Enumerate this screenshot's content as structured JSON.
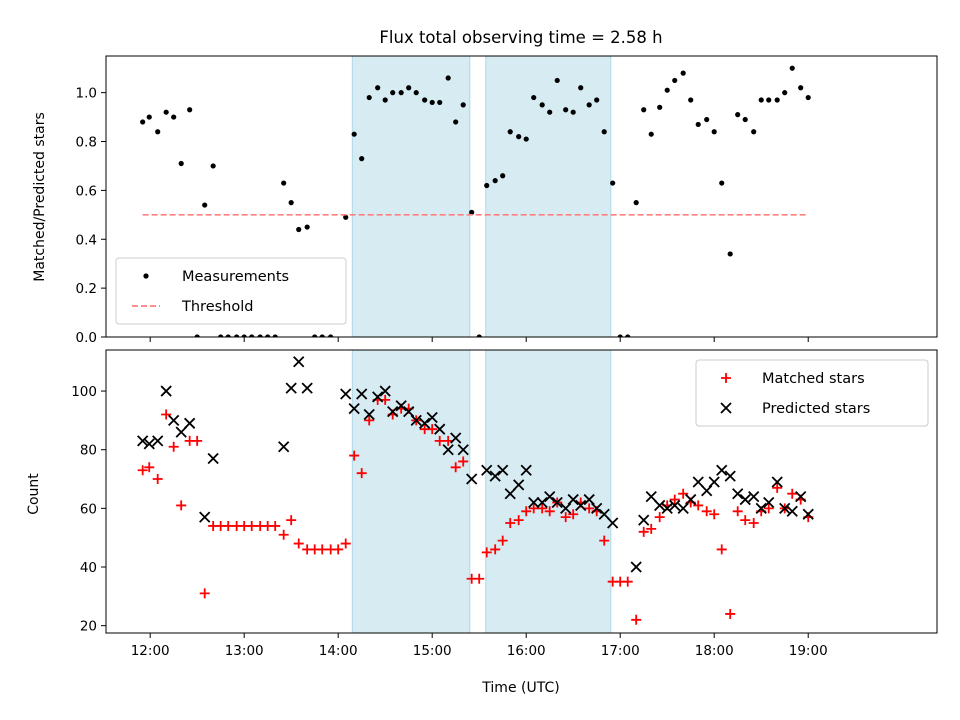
{
  "chart_data": [
    {
      "type": "scatter",
      "title": "Flux total observing time = 2.58 h",
      "xlabel": "",
      "ylabel": "Matched/Predicted stars",
      "xlim": [
        11.53,
        20.37
      ],
      "ylim": [
        0,
        1.15
      ],
      "xticks": [
        {
          "v": 12,
          "label": ""
        },
        {
          "v": 13,
          "label": ""
        },
        {
          "v": 14,
          "label": ""
        },
        {
          "v": 15,
          "label": ""
        },
        {
          "v": 16,
          "label": ""
        },
        {
          "v": 17,
          "label": ""
        },
        {
          "v": 18,
          "label": ""
        },
        {
          "v": 19,
          "label": ""
        }
      ],
      "yticks": [
        {
          "v": 0,
          "label": "0.0"
        },
        {
          "v": 0.2,
          "label": "0.2"
        },
        {
          "v": 0.4,
          "label": "0.4"
        },
        {
          "v": 0.6,
          "label": "0.6"
        },
        {
          "v": 0.8,
          "label": "0.8"
        },
        {
          "v": 1.0,
          "label": "1.0"
        }
      ],
      "shaded_intervals": [
        [
          14.15,
          15.4
        ],
        [
          15.57,
          16.9
        ]
      ],
      "legend": {
        "position": "lower-left",
        "entries": [
          "Measurements",
          "Threshold"
        ]
      },
      "series": [
        {
          "name": "Measurements",
          "marker": "dot",
          "color": "#000000",
          "points": [
            [
              11.92,
              0.88
            ],
            [
              11.99,
              0.9
            ],
            [
              12.08,
              0.84
            ],
            [
              12.17,
              0.92
            ],
            [
              12.25,
              0.9
            ],
            [
              12.33,
              0.71
            ],
            [
              12.42,
              0.93
            ],
            [
              12.5,
              0.0
            ],
            [
              12.58,
              0.54
            ],
            [
              12.67,
              0.7
            ],
            [
              12.75,
              0.0
            ],
            [
              12.83,
              0.0
            ],
            [
              12.92,
              0.0
            ],
            [
              13.0,
              0.0
            ],
            [
              13.08,
              0.0
            ],
            [
              13.17,
              0.0
            ],
            [
              13.25,
              0.0
            ],
            [
              13.33,
              0.0
            ],
            [
              13.42,
              0.63
            ],
            [
              13.5,
              0.55
            ],
            [
              13.58,
              0.44
            ],
            [
              13.67,
              0.45
            ],
            [
              13.75,
              0.0
            ],
            [
              13.83,
              0.0
            ],
            [
              13.92,
              0.0
            ],
            [
              14.08,
              0.49
            ],
            [
              14.17,
              0.83
            ],
            [
              14.25,
              0.73
            ],
            [
              14.33,
              0.98
            ],
            [
              14.42,
              1.02
            ],
            [
              14.5,
              0.97
            ],
            [
              14.58,
              1.0
            ],
            [
              14.67,
              1.0
            ],
            [
              14.75,
              1.02
            ],
            [
              14.83,
              1.0
            ],
            [
              14.92,
              0.97
            ],
            [
              15.0,
              0.96
            ],
            [
              15.08,
              0.96
            ],
            [
              15.17,
              1.06
            ],
            [
              15.25,
              0.88
            ],
            [
              15.33,
              0.95
            ],
            [
              15.42,
              0.51
            ],
            [
              15.5,
              0.0
            ],
            [
              15.58,
              0.62
            ],
            [
              15.67,
              0.64
            ],
            [
              15.75,
              0.66
            ],
            [
              15.83,
              0.84
            ],
            [
              15.92,
              0.82
            ],
            [
              16.0,
              0.81
            ],
            [
              16.08,
              0.98
            ],
            [
              16.17,
              0.95
            ],
            [
              16.25,
              0.92
            ],
            [
              16.33,
              1.05
            ],
            [
              16.42,
              0.93
            ],
            [
              16.5,
              0.92
            ],
            [
              16.58,
              1.02
            ],
            [
              16.67,
              0.95
            ],
            [
              16.75,
              0.97
            ],
            [
              16.83,
              0.84
            ],
            [
              16.92,
              0.63
            ],
            [
              17.0,
              0.0
            ],
            [
              17.08,
              0.0
            ],
            [
              17.17,
              0.55
            ],
            [
              17.25,
              0.93
            ],
            [
              17.33,
              0.83
            ],
            [
              17.42,
              0.94
            ],
            [
              17.5,
              1.01
            ],
            [
              17.58,
              1.05
            ],
            [
              17.67,
              1.08
            ],
            [
              17.75,
              0.97
            ],
            [
              17.83,
              0.87
            ],
            [
              17.92,
              0.89
            ],
            [
              18.0,
              0.84
            ],
            [
              18.08,
              0.63
            ],
            [
              18.17,
              0.34
            ],
            [
              18.25,
              0.91
            ],
            [
              18.33,
              0.89
            ],
            [
              18.42,
              0.84
            ],
            [
              18.5,
              0.97
            ],
            [
              18.58,
              0.97
            ],
            [
              18.67,
              0.97
            ],
            [
              18.75,
              1.0
            ],
            [
              18.83,
              1.1
            ],
            [
              18.92,
              1.02
            ],
            [
              19.0,
              0.98
            ]
          ]
        },
        {
          "name": "Threshold",
          "marker": "dashed-line",
          "color": "#ff7f7f",
          "points": [
            [
              11.92,
              0.5
            ],
            [
              19.0,
              0.5
            ]
          ]
        }
      ]
    },
    {
      "type": "scatter",
      "title": "",
      "xlabel": "Time (UTC)",
      "ylabel": "Count",
      "xlim": [
        11.53,
        20.37
      ],
      "ylim": [
        17.5,
        114
      ],
      "xticks": [
        {
          "v": 12,
          "label": "12:00"
        },
        {
          "v": 13,
          "label": "13:00"
        },
        {
          "v": 14,
          "label": "14:00"
        },
        {
          "v": 15,
          "label": "15:00"
        },
        {
          "v": 16,
          "label": "16:00"
        },
        {
          "v": 17,
          "label": "17:00"
        },
        {
          "v": 18,
          "label": "18:00"
        },
        {
          "v": 19,
          "label": "19:00"
        }
      ],
      "yticks": [
        {
          "v": 20,
          "label": "20"
        },
        {
          "v": 40,
          "label": "40"
        },
        {
          "v": 60,
          "label": "60"
        },
        {
          "v": 80,
          "label": "80"
        },
        {
          "v": 100,
          "label": "100"
        }
      ],
      "shaded_intervals": [
        [
          14.15,
          15.4
        ],
        [
          15.57,
          16.9
        ]
      ],
      "legend": {
        "position": "top-right",
        "entries": [
          "Matched stars",
          "Predicted stars"
        ]
      },
      "series": [
        {
          "name": "Matched stars",
          "marker": "plus",
          "color": "#ff0000",
          "points": [
            [
              11.92,
              73
            ],
            [
              11.99,
              74
            ],
            [
              12.08,
              70
            ],
            [
              12.17,
              92
            ],
            [
              12.25,
              81
            ],
            [
              12.33,
              61
            ],
            [
              12.42,
              83
            ],
            [
              12.5,
              83
            ],
            [
              12.58,
              31
            ],
            [
              12.67,
              54
            ],
            [
              12.75,
              54
            ],
            [
              12.83,
              54
            ],
            [
              12.92,
              54
            ],
            [
              13.0,
              54
            ],
            [
              13.08,
              54
            ],
            [
              13.17,
              54
            ],
            [
              13.25,
              54
            ],
            [
              13.33,
              54
            ],
            [
              13.42,
              51
            ],
            [
              13.5,
              56
            ],
            [
              13.58,
              48
            ],
            [
              13.67,
              46
            ],
            [
              13.75,
              46
            ],
            [
              13.83,
              46
            ],
            [
              13.92,
              46
            ],
            [
              14.0,
              46
            ],
            [
              14.08,
              48
            ],
            [
              14.17,
              78
            ],
            [
              14.25,
              72
            ],
            [
              14.33,
              90
            ],
            [
              14.42,
              97
            ],
            [
              14.5,
              97
            ],
            [
              14.58,
              92
            ],
            [
              14.67,
              94
            ],
            [
              14.75,
              94
            ],
            [
              14.83,
              90
            ],
            [
              14.92,
              87
            ],
            [
              15.0,
              87
            ],
            [
              15.08,
              83
            ],
            [
              15.17,
              83
            ],
            [
              15.25,
              74
            ],
            [
              15.33,
              76
            ],
            [
              15.42,
              36
            ],
            [
              15.5,
              36
            ],
            [
              15.58,
              45
            ],
            [
              15.67,
              46
            ],
            [
              15.75,
              49
            ],
            [
              15.83,
              55
            ],
            [
              15.92,
              56
            ],
            [
              16.0,
              59
            ],
            [
              16.08,
              60
            ],
            [
              16.17,
              60
            ],
            [
              16.25,
              59
            ],
            [
              16.33,
              62
            ],
            [
              16.42,
              57
            ],
            [
              16.5,
              58
            ],
            [
              16.58,
              62
            ],
            [
              16.67,
              60
            ],
            [
              16.75,
              59
            ],
            [
              16.83,
              49
            ],
            [
              16.92,
              35
            ],
            [
              17.0,
              35
            ],
            [
              17.08,
              35
            ],
            [
              17.17,
              22
            ],
            [
              17.25,
              52
            ],
            [
              17.33,
              53
            ],
            [
              17.42,
              57
            ],
            [
              17.5,
              61
            ],
            [
              17.58,
              63
            ],
            [
              17.67,
              65
            ],
            [
              17.75,
              62
            ],
            [
              17.83,
              61
            ],
            [
              17.92,
              59
            ],
            [
              18.0,
              58
            ],
            [
              18.08,
              46
            ],
            [
              18.17,
              24
            ],
            [
              18.25,
              59
            ],
            [
              18.33,
              56
            ],
            [
              18.42,
              55
            ],
            [
              18.5,
              59
            ],
            [
              18.58,
              60
            ],
            [
              18.67,
              67
            ],
            [
              18.75,
              60
            ],
            [
              18.83,
              65
            ],
            [
              18.92,
              63
            ],
            [
              19.0,
              57
            ]
          ]
        },
        {
          "name": "Predicted stars",
          "marker": "x",
          "color": "#000000",
          "points": [
            [
              11.92,
              83
            ],
            [
              11.99,
              82
            ],
            [
              12.08,
              83
            ],
            [
              12.17,
              100
            ],
            [
              12.25,
              90
            ],
            [
              12.33,
              86
            ],
            [
              12.42,
              89
            ],
            [
              12.58,
              57
            ],
            [
              12.67,
              77
            ],
            [
              13.42,
              81
            ],
            [
              13.5,
              101
            ],
            [
              13.58,
              110
            ],
            [
              13.67,
              101
            ],
            [
              14.08,
              99
            ],
            [
              14.17,
              94
            ],
            [
              14.25,
              99
            ],
            [
              14.33,
              92
            ],
            [
              14.42,
              98
            ],
            [
              14.5,
              100
            ],
            [
              14.58,
              93
            ],
            [
              14.67,
              95
            ],
            [
              14.75,
              93
            ],
            [
              14.83,
              90
            ],
            [
              14.92,
              89
            ],
            [
              15.0,
              91
            ],
            [
              15.08,
              87
            ],
            [
              15.17,
              80
            ],
            [
              15.25,
              84
            ],
            [
              15.33,
              80
            ],
            [
              15.42,
              70
            ],
            [
              15.58,
              73
            ],
            [
              15.67,
              71
            ],
            [
              15.75,
              73
            ],
            [
              15.83,
              65
            ],
            [
              15.92,
              68
            ],
            [
              16.0,
              73
            ],
            [
              16.08,
              62
            ],
            [
              16.17,
              62
            ],
            [
              16.25,
              64
            ],
            [
              16.33,
              62
            ],
            [
              16.42,
              60
            ],
            [
              16.5,
              63
            ],
            [
              16.58,
              61
            ],
            [
              16.67,
              63
            ],
            [
              16.75,
              60
            ],
            [
              16.83,
              58
            ],
            [
              16.92,
              55
            ],
            [
              17.17,
              40
            ],
            [
              17.25,
              56
            ],
            [
              17.33,
              64
            ],
            [
              17.42,
              61
            ],
            [
              17.5,
              60
            ],
            [
              17.58,
              61
            ],
            [
              17.67,
              60
            ],
            [
              17.75,
              63
            ],
            [
              17.83,
              69
            ],
            [
              17.92,
              66
            ],
            [
              18.0,
              69
            ],
            [
              18.08,
              73
            ],
            [
              18.17,
              71
            ],
            [
              18.25,
              65
            ],
            [
              18.33,
              63
            ],
            [
              18.42,
              64
            ],
            [
              18.5,
              60
            ],
            [
              18.58,
              62
            ],
            [
              18.67,
              69
            ],
            [
              18.75,
              60
            ],
            [
              18.83,
              59
            ],
            [
              18.92,
              64
            ],
            [
              19.0,
              58
            ]
          ]
        }
      ]
    }
  ]
}
